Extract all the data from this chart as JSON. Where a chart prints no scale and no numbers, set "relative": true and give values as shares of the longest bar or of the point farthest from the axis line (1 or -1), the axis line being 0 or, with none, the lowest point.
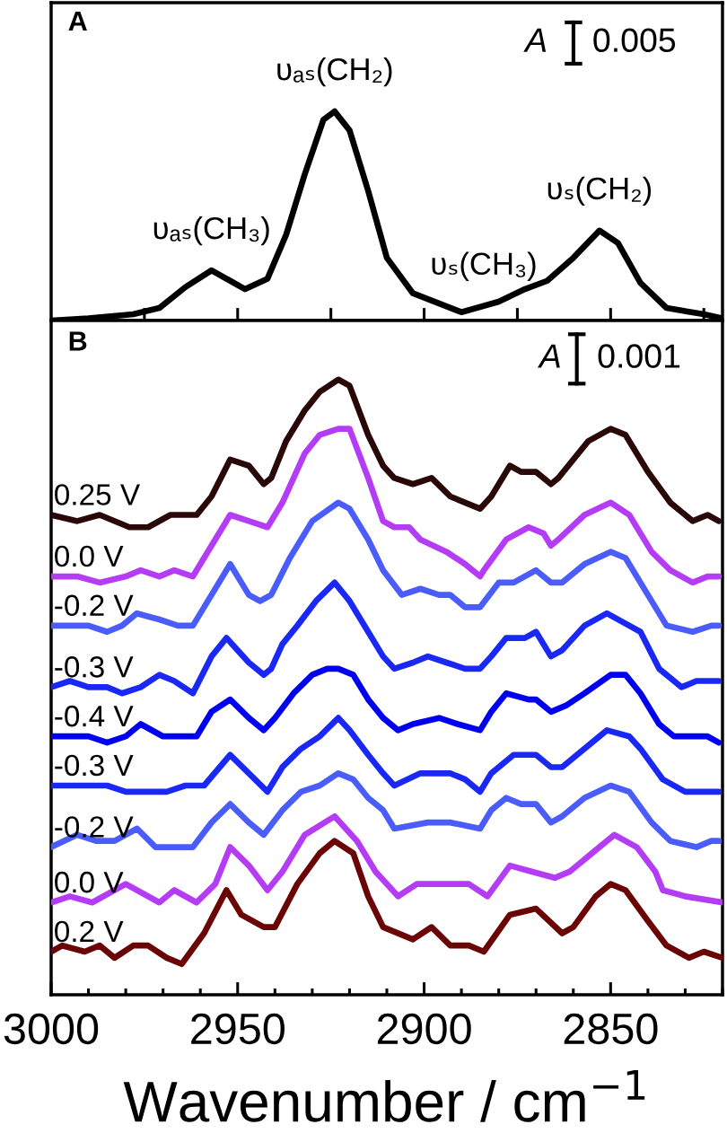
{
  "chart_data": [
    {
      "type": "line",
      "title": "A",
      "relative": true,
      "xlim": [
        3000,
        2820
      ],
      "tick_labels": false,
      "xticks": [
        2975,
        2950,
        2925,
        2900,
        2875,
        2850,
        2825
      ],
      "x": [
        3000,
        2990,
        2978,
        2971,
        2964,
        2957,
        2952,
        2948,
        2942,
        2937,
        2932,
        2927,
        2924,
        2920,
        2915,
        2910,
        2903,
        2890,
        2880,
        2873,
        2867,
        2860,
        2853,
        2848,
        2842,
        2835,
        2825,
        2820
      ],
      "series": [
        {
          "color": "#000000",
          "values": [
            0.0,
            0.01,
            0.03,
            0.06,
            0.16,
            0.24,
            0.19,
            0.15,
            0.2,
            0.41,
            0.7,
            0.96,
            1.0,
            0.91,
            0.62,
            0.3,
            0.13,
            0.04,
            0.09,
            0.15,
            0.19,
            0.3,
            0.43,
            0.37,
            0.18,
            0.06,
            0.03,
            0.01
          ]
        }
      ],
      "annotations": [
        {
          "text": "υₐₛ(CH₃)",
          "x": 2957,
          "y": 0.24
        },
        {
          "text": "υₐₛ(CH₂)",
          "x": 2924,
          "y": 1.0
        },
        {
          "text": "υₛ(CH₃)",
          "x": 2884,
          "y": 0.07
        },
        {
          "text": "υₛ(CH₂)",
          "x": 2853,
          "y": 0.43
        },
        "A",
        "0.005"
      ]
    },
    {
      "type": "line",
      "title": "B",
      "relative": true,
      "xlim": [
        3000,
        2820
      ],
      "xlabel": "Wavenumber / cm$^{−1}$",
      "xticks": [
        3000,
        {
          "value": 2990,
          "label": null
        },
        {
          "value": 2980,
          "label": null
        },
        {
          "value": 2970,
          "label": null
        },
        {
          "value": 2960,
          "label": null
        },
        2950,
        {
          "value": 2940,
          "label": null
        },
        {
          "value": 2930,
          "label": null
        },
        {
          "value": 2920,
          "label": null
        },
        {
          "value": 2910,
          "label": null
        },
        2900,
        {
          "value": 2890,
          "label": null
        },
        {
          "value": 2880,
          "label": null
        },
        {
          "value": 2870,
          "label": null
        },
        {
          "value": 2860,
          "label": null
        },
        2850,
        {
          "value": 2840,
          "label": null
        },
        {
          "value": 2830,
          "label": null
        },
        {
          "value": 2820,
          "label": null
        }
      ],
      "series": [
        {
          "name": "0.25 V",
          "color": "#2a0808",
          "x": [
            3000,
            2993,
            2987,
            2979,
            2974,
            2968,
            2961,
            2957,
            2952,
            2947,
            2943,
            2941,
            2937,
            2932,
            2928,
            2923,
            2920,
            2915,
            2911,
            2908,
            2903,
            2898,
            2893,
            2889,
            2885,
            2882,
            2877,
            2874,
            2870,
            2866,
            2864,
            2856,
            2850,
            2846,
            2840,
            2834,
            2828,
            2824,
            2821
          ],
          "values": [
            0.78,
            0.77,
            0.78,
            0.76,
            0.76,
            0.78,
            0.78,
            0.81,
            0.87,
            0.86,
            0.83,
            0.84,
            0.9,
            0.95,
            0.98,
            1.0,
            0.99,
            0.91,
            0.86,
            0.84,
            0.83,
            0.84,
            0.81,
            0.8,
            0.79,
            0.81,
            0.86,
            0.85,
            0.85,
            0.83,
            0.84,
            0.9,
            0.92,
            0.91,
            0.85,
            0.8,
            0.77,
            0.78,
            0.77
          ]
        },
        {
          "name": "0.0 V",
          "color": "#b43cf5",
          "x": [
            3000,
            2993,
            2987,
            2980,
            2976,
            2971,
            2967,
            2962,
            2957,
            2952,
            2947,
            2942,
            2938,
            2932,
            2928,
            2923,
            2920,
            2915,
            2911,
            2908,
            2904,
            2901,
            2894,
            2889,
            2885,
            2884,
            2878,
            2872,
            2868,
            2866,
            2864,
            2857,
            2850,
            2845,
            2839,
            2834,
            2828,
            2824,
            2821
          ],
          "values": [
            0.68,
            0.68,
            0.67,
            0.68,
            0.69,
            0.68,
            0.69,
            0.68,
            0.73,
            0.78,
            0.77,
            0.76,
            0.8,
            0.88,
            0.91,
            0.92,
            0.92,
            0.84,
            0.77,
            0.76,
            0.76,
            0.74,
            0.72,
            0.7,
            0.68,
            0.69,
            0.74,
            0.76,
            0.75,
            0.73,
            0.74,
            0.78,
            0.8,
            0.78,
            0.72,
            0.69,
            0.67,
            0.68,
            0.68
          ]
        },
        {
          "name": "-0.2 V",
          "color": "#4a5cfa",
          "x": [
            3000,
            2995,
            2990,
            2985,
            2981,
            2977,
            2971,
            2966,
            2962,
            2957,
            2952,
            2947,
            2944,
            2941,
            2936,
            2930,
            2923,
            2920,
            2915,
            2911,
            2906,
            2901,
            2896,
            2893,
            2889,
            2885,
            2880,
            2876,
            2870,
            2866,
            2863,
            2857,
            2850,
            2846,
            2840,
            2835,
            2828,
            2823,
            2821
          ],
          "values": [
            0.6,
            0.6,
            0.6,
            0.59,
            0.6,
            0.62,
            0.61,
            0.6,
            0.6,
            0.65,
            0.7,
            0.65,
            0.64,
            0.65,
            0.71,
            0.77,
            0.8,
            0.79,
            0.74,
            0.69,
            0.65,
            0.66,
            0.65,
            0.65,
            0.63,
            0.63,
            0.67,
            0.67,
            0.69,
            0.67,
            0.67,
            0.7,
            0.72,
            0.71,
            0.65,
            0.6,
            0.59,
            0.6,
            0.6
          ]
        },
        {
          "name": "-0.3 V",
          "color": "#1a28f5",
          "x": [
            3000,
            2995,
            2990,
            2985,
            2981,
            2976,
            2971,
            2967,
            2962,
            2957,
            2953,
            2947,
            2943,
            2941,
            2938,
            2934,
            2929,
            2924,
            2920,
            2915,
            2911,
            2908,
            2903,
            2899,
            2894,
            2889,
            2885,
            2882,
            2878,
            2873,
            2870,
            2866,
            2863,
            2857,
            2851,
            2845,
            2842,
            2837,
            2831,
            2827,
            2821
          ],
          "values": [
            0.5,
            0.51,
            0.5,
            0.5,
            0.49,
            0.5,
            0.52,
            0.51,
            0.49,
            0.55,
            0.58,
            0.54,
            0.52,
            0.53,
            0.57,
            0.6,
            0.64,
            0.67,
            0.64,
            0.59,
            0.55,
            0.53,
            0.54,
            0.55,
            0.54,
            0.53,
            0.53,
            0.55,
            0.58,
            0.58,
            0.59,
            0.55,
            0.56,
            0.6,
            0.62,
            0.6,
            0.59,
            0.53,
            0.5,
            0.51,
            0.51
          ]
        },
        {
          "name": "-0.4 V",
          "color": "#0000f0",
          "x": [
            3000,
            2995,
            2990,
            2985,
            2980,
            2976,
            2970,
            2965,
            2961,
            2957,
            2952,
            2947,
            2943,
            2940,
            2935,
            2930,
            2926,
            2923,
            2919,
            2915,
            2911,
            2907,
            2903,
            2896,
            2891,
            2885,
            2882,
            2878,
            2872,
            2870,
            2866,
            2862,
            2857,
            2850,
            2846,
            2842,
            2837,
            2833,
            2827,
            2824,
            2821
          ],
          "values": [
            0.42,
            0.42,
            0.42,
            0.41,
            0.42,
            0.44,
            0.42,
            0.42,
            0.42,
            0.46,
            0.48,
            0.45,
            0.43,
            0.45,
            0.49,
            0.52,
            0.53,
            0.53,
            0.52,
            0.48,
            0.45,
            0.43,
            0.44,
            0.45,
            0.44,
            0.43,
            0.46,
            0.49,
            0.48,
            0.48,
            0.46,
            0.47,
            0.49,
            0.52,
            0.52,
            0.49,
            0.44,
            0.42,
            0.42,
            0.42,
            0.41
          ]
        },
        {
          "name": "-0.3 V",
          "color": "#1a28f5",
          "x": [
            3000,
            2995,
            2990,
            2985,
            2980,
            2973,
            2969,
            2964,
            2959,
            2952,
            2947,
            2942,
            2938,
            2933,
            2928,
            2923,
            2920,
            2915,
            2911,
            2908,
            2901,
            2893,
            2889,
            2885,
            2882,
            2876,
            2870,
            2866,
            2863,
            2857,
            2851,
            2845,
            2842,
            2836,
            2830,
            2825,
            2821
          ],
          "values": [
            0.34,
            0.34,
            0.34,
            0.34,
            0.33,
            0.33,
            0.33,
            0.34,
            0.34,
            0.39,
            0.36,
            0.33,
            0.37,
            0.4,
            0.42,
            0.45,
            0.43,
            0.39,
            0.36,
            0.34,
            0.36,
            0.36,
            0.35,
            0.33,
            0.36,
            0.39,
            0.39,
            0.37,
            0.37,
            0.4,
            0.43,
            0.42,
            0.4,
            0.35,
            0.33,
            0.33,
            0.33
          ]
        },
        {
          "name": "-0.2 V",
          "color": "#4a5cfa",
          "x": [
            3000,
            2993,
            2988,
            2983,
            2977,
            2972,
            2967,
            2962,
            2957,
            2952,
            2947,
            2943,
            2938,
            2933,
            2928,
            2923,
            2919,
            2915,
            2911,
            2908,
            2899,
            2893,
            2885,
            2882,
            2878,
            2874,
            2870,
            2866,
            2863,
            2857,
            2850,
            2845,
            2839,
            2834,
            2827,
            2823,
            2821
          ],
          "values": [
            0.24,
            0.26,
            0.25,
            0.25,
            0.27,
            0.24,
            0.24,
            0.24,
            0.28,
            0.31,
            0.28,
            0.26,
            0.3,
            0.33,
            0.34,
            0.36,
            0.35,
            0.32,
            0.3,
            0.27,
            0.28,
            0.28,
            0.27,
            0.3,
            0.32,
            0.31,
            0.31,
            0.28,
            0.29,
            0.32,
            0.34,
            0.33,
            0.28,
            0.25,
            0.24,
            0.25,
            0.25
          ]
        },
        {
          "name": "0.0 V",
          "color": "#b43cf5",
          "x": [
            3000,
            2995,
            2989,
            2980,
            2971,
            2967,
            2961,
            2956,
            2952,
            2947,
            2942,
            2938,
            2932,
            2924,
            2918,
            2913,
            2907,
            2902,
            2897,
            2892,
            2888,
            2883,
            2877,
            2871,
            2865,
            2861,
            2855,
            2849,
            2843,
            2838,
            2836,
            2830,
            2820
          ],
          "values": [
            0.15,
            0.16,
            0.15,
            0.18,
            0.15,
            0.17,
            0.15,
            0.18,
            0.24,
            0.21,
            0.17,
            0.2,
            0.26,
            0.29,
            0.25,
            0.2,
            0.16,
            0.18,
            0.18,
            0.18,
            0.18,
            0.16,
            0.21,
            0.2,
            0.19,
            0.2,
            0.23,
            0.26,
            0.24,
            0.2,
            0.17,
            0.16,
            0.15
          ]
        },
        {
          "name": "0.2 V",
          "color": "#6b0505",
          "x": [
            3000,
            2997,
            2991,
            2987,
            2983,
            2978,
            2974,
            2969,
            2965,
            2959,
            2953,
            2949,
            2943,
            2940,
            2934,
            2928,
            2924,
            2919,
            2915,
            2911,
            2903,
            2898,
            2893,
            2888,
            2884,
            2877,
            2870,
            2863,
            2860,
            2854,
            2850,
            2846,
            2840,
            2835,
            2829,
            2825,
            2820
          ],
          "values": [
            0.07,
            0.08,
            0.07,
            0.08,
            0.06,
            0.08,
            0.08,
            0.06,
            0.05,
            0.1,
            0.17,
            0.13,
            0.11,
            0.11,
            0.18,
            0.23,
            0.25,
            0.23,
            0.16,
            0.11,
            0.09,
            0.11,
            0.08,
            0.08,
            0.07,
            0.13,
            0.14,
            0.1,
            0.11,
            0.16,
            0.18,
            0.17,
            0.12,
            0.08,
            0.06,
            0.07,
            0.06
          ]
        }
      ],
      "annotations": [
        "A",
        "0.001"
      ]
    }
  ]
}
